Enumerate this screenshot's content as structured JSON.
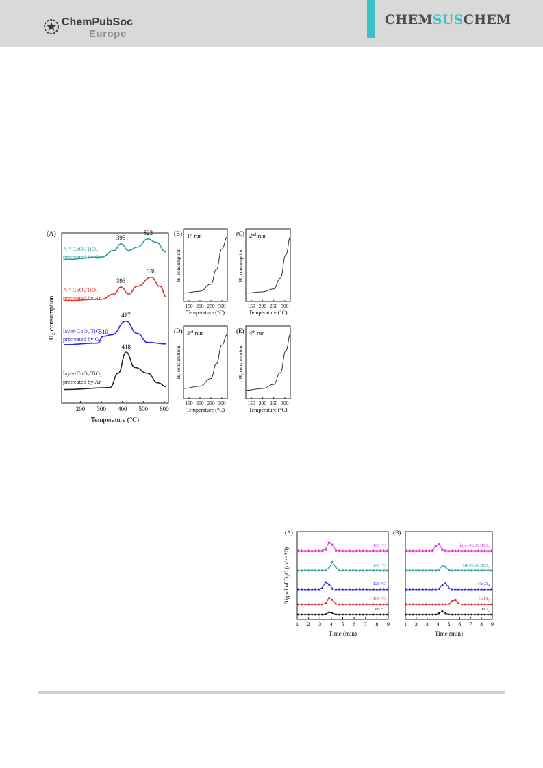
{
  "header": {
    "publisher": "ChemPubSoc",
    "publisher_sub": "Europe",
    "journal_pre": "CHEM",
    "journal_mid": "SUS",
    "journal_post": "CHEM",
    "colors": {
      "bar": "#d9d9d9",
      "accent": "#3cbfc7"
    }
  },
  "figure1": {
    "panel_A": {
      "label": "(A)",
      "xlabel": "Temperature (°C)",
      "ylabel": "H₂ consumption",
      "x_ticks": [
        "200",
        "300",
        "400",
        "500",
        "600"
      ],
      "curve_labels": [
        {
          "line1": "NP-CoOₓ/TiO₂",
          "line2": "pretreated by O₂",
          "color": "#2a9a9a"
        },
        {
          "line1": "NP-CoOₓ/TiO₂",
          "line2": "pretreated by Ar",
          "color": "#e8312a"
        },
        {
          "line1": "layer-CoOₓ/TiO₂",
          "line2": "pretreated by O₂",
          "color": "#2b2bd8"
        },
        {
          "line1": "layer-CoOₓ/TiO₂",
          "line2": "pretreated by Ar",
          "color": "#222222"
        }
      ],
      "peak_labels": [
        "393",
        "523",
        "393",
        "538",
        "417",
        "310",
        "418"
      ]
    },
    "small_panels": [
      {
        "label": "(B)",
        "run": "1",
        "sup": "st",
        "run_suffix": " run"
      },
      {
        "label": "(C)",
        "run": "2",
        "sup": "nd",
        "run_suffix": " run"
      },
      {
        "label": "(D)",
        "run": "3",
        "sup": "rd",
        "run_suffix": " run"
      },
      {
        "label": "(E)",
        "run": "4",
        "sup": "th",
        "run_suffix": " run"
      }
    ],
    "small_ylabel": "H₂ consumption",
    "small_xlabel": "Temperature (°C)",
    "small_x_ticks": [
      "150",
      "200",
      "250",
      "300"
    ]
  },
  "figure2": {
    "panel_A": {
      "label": "(A)",
      "ylabel": "Signal of D₂O  (m/z=20)",
      "xlabel": "Time (min)",
      "series_labels": [
        "160 °C",
        "140 °C",
        "120 °C",
        "100 °C",
        "80 °C"
      ]
    },
    "panel_B": {
      "label": "(B)",
      "xlabel": "Time (min)",
      "series_labels": [
        "layer-CoOₓ/TiO₂",
        "NP-CoOₓ/TiO₂",
        "Co₃O₄",
        "CoCl₂",
        "TiO₂"
      ]
    },
    "x_ticks": [
      "1",
      "2",
      "3",
      "4",
      "5",
      "6",
      "7",
      "8",
      "9"
    ],
    "series_colors": [
      "#e22ee2",
      "#2a9a9a",
      "#2020d8",
      "#e02020",
      "#111111"
    ]
  },
  "chart_data": [
    {
      "type": "line",
      "xlabel": "Temperature (°C)",
      "ylabel": "H₂ consumption",
      "xlim": [
        110,
        620
      ],
      "series": [
        {
          "name": "NP-CoOₓ/TiO₂ pretreated by O₂",
          "x": [
            120,
            300,
            360,
            393,
            430,
            470,
            523,
            560,
            610
          ],
          "y": [
            0.05,
            0.2,
            0.6,
            1.0,
            0.6,
            0.8,
            1.3,
            1.1,
            0.5
          ],
          "peaks": [
            393,
            523
          ]
        },
        {
          "name": "NP-CoOₓ/TiO₂ pretreated by Ar",
          "x": [
            120,
            300,
            360,
            393,
            430,
            470,
            538,
            580,
            610
          ],
          "y": [
            0.05,
            0.15,
            0.5,
            0.95,
            0.5,
            1.0,
            1.6,
            1.0,
            0.3
          ],
          "peaks": [
            393,
            538
          ]
        },
        {
          "name": "layer-CoOₓ/TiO₂ pretreated by O₂",
          "x": [
            120,
            280,
            310,
            350,
            417,
            470,
            520,
            610
          ],
          "y": [
            0.05,
            0.15,
            0.6,
            0.7,
            1.6,
            0.8,
            0.2,
            0.1
          ],
          "peaks": [
            310,
            417
          ]
        },
        {
          "name": "layer-CoOₓ/TiO₂ pretreated by Ar",
          "x": [
            120,
            340,
            380,
            418,
            460,
            520,
            570,
            610
          ],
          "y": [
            0.05,
            0.15,
            0.9,
            2.0,
            1.2,
            0.9,
            0.4,
            0.2
          ],
          "peaks": [
            418
          ]
        }
      ]
    },
    {
      "type": "line",
      "xlabel": "Temperature (°C)",
      "ylabel": "H₂ consumption",
      "xlim": [
        125,
        325
      ],
      "series": [
        {
          "name": "1st run",
          "x": [
            125,
            200,
            250,
            275,
            300,
            325
          ],
          "y": [
            0.05,
            0.08,
            0.2,
            0.45,
            0.8,
            1.0
          ]
        },
        {
          "name": "2nd run",
          "x": [
            125,
            200,
            250,
            280,
            305,
            325
          ],
          "y": [
            0.05,
            0.07,
            0.12,
            0.3,
            0.7,
            1.0
          ]
        },
        {
          "name": "3rd run",
          "x": [
            125,
            200,
            250,
            275,
            300,
            325
          ],
          "y": [
            0.08,
            0.12,
            0.25,
            0.5,
            0.82,
            1.0
          ]
        },
        {
          "name": "4th run",
          "x": [
            125,
            200,
            250,
            280,
            305,
            325
          ],
          "y": [
            0.05,
            0.08,
            0.15,
            0.35,
            0.72,
            1.0
          ]
        }
      ]
    },
    {
      "type": "line",
      "xlabel": "Time (min)",
      "ylabel": "Signal of D₂O  (m/z=20)",
      "xlim": [
        1,
        9
      ],
      "series": [
        {
          "name": "160 °C",
          "peak_x": 3.9,
          "peak_height": 1.0
        },
        {
          "name": "140 °C",
          "peak_x": 4.1,
          "peak_height": 0.9
        },
        {
          "name": "120 °C",
          "peak_x": 3.6,
          "peak_height": 0.8
        },
        {
          "name": "100 °C",
          "peak_x": 3.9,
          "peak_height": 0.7
        },
        {
          "name": "80 °C",
          "peak_x": 3.9,
          "peak_height": 0.25
        }
      ]
    },
    {
      "type": "line",
      "xlabel": "Time (min)",
      "xlim": [
        1,
        9
      ],
      "series": [
        {
          "name": "layer-CoOₓ/TiO₂",
          "peak_x": 4.0,
          "peak_height": 0.8
        },
        {
          "name": "NP-CoOₓ/TiO₂",
          "peak_x": 4.5,
          "peak_height": 0.6
        },
        {
          "name": "Co₃O₄",
          "peak_x": 4.6,
          "peak_height": 0.7
        },
        {
          "name": "CoCl₂",
          "peak_x": 5.5,
          "peak_height": 0.5
        },
        {
          "name": "TiO₂",
          "peak_x": 4.4,
          "peak_height": 0.35
        }
      ]
    }
  ]
}
